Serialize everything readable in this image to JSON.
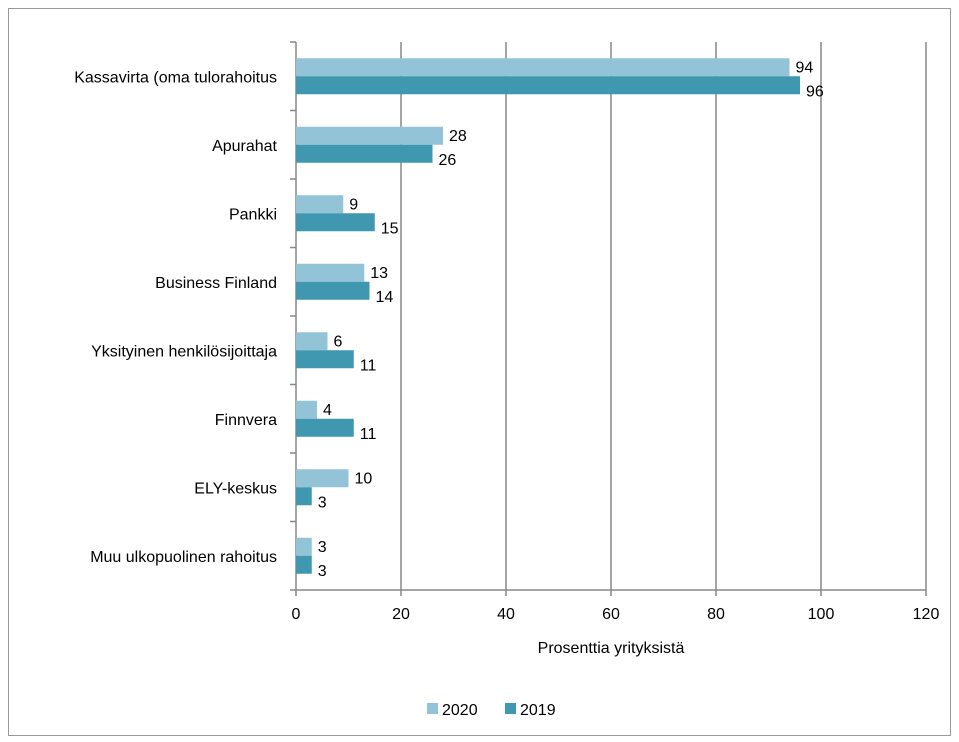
{
  "chart_data": {
    "type": "bar",
    "orientation": "horizontal",
    "categories": [
      "Kassavirta (oma tulorahoitus",
      "Apurahat",
      "Pankki",
      "Business Finland",
      "Yksityinen henkilösijoittaja",
      "Finnvera",
      "ELY-keskus",
      "Muu ulkopuolinen rahoitus"
    ],
    "series": [
      {
        "name": "2020",
        "color": "#92c3d6",
        "values": [
          94,
          28,
          9,
          13,
          6,
          4,
          10,
          3
        ]
      },
      {
        "name": "2019",
        "color": "#3f97b0",
        "values": [
          96,
          26,
          15,
          14,
          11,
          11,
          3,
          3
        ]
      }
    ],
    "xlabel": "Prosenttia yrityksistä",
    "ylabel": "",
    "xlim": [
      0,
      120
    ],
    "xticks": [
      0,
      20,
      40,
      60,
      80,
      100,
      120
    ],
    "grid": true,
    "data_labels": true,
    "legend_position": "bottom"
  }
}
